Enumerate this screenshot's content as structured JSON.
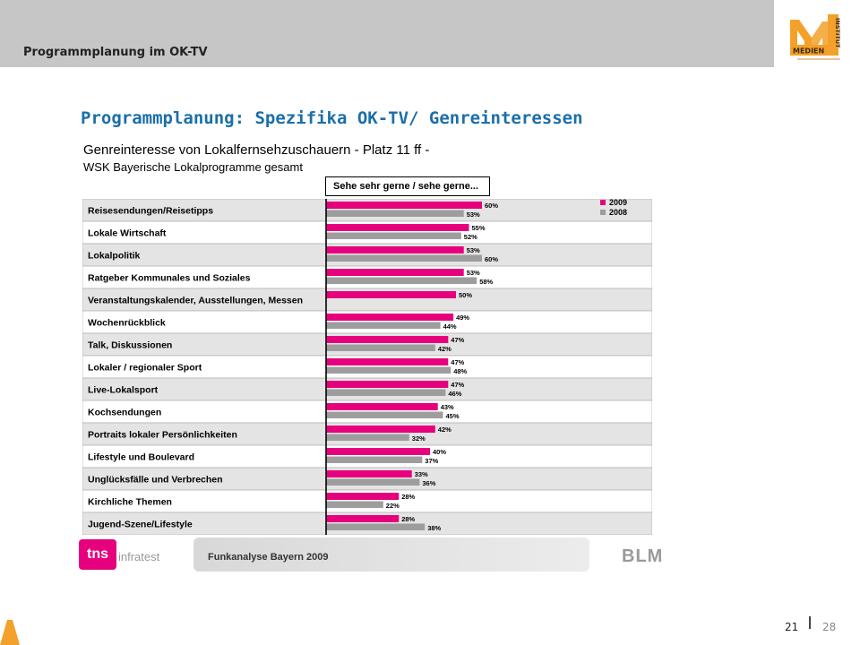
{
  "header": {
    "title": "Programmplanung im OK-TV",
    "logo_text": "MEDIEN",
    "logo_side": "INSTITUT"
  },
  "slide_title": "Programmplanung: Spezifika OK-TV/ Genreinteressen",
  "colors": {
    "series_2009": "#e6007e",
    "series_2008": "#9d9d9d",
    "row_alt": "#e4e4e4",
    "title": "#1b6fa8"
  },
  "chart_data": {
    "type": "bar",
    "orientation": "horizontal",
    "title": "Genreinteresse von Lokalfernsehzuschauern - Platz 11 ff -",
    "subtitle": "WSK Bayerische Lokalprogramme gesamt",
    "column_header": "Sehe sehr gerne / sehe gerne...",
    "legend_position": "top-right",
    "xlim": [
      0,
      100
    ],
    "categories": [
      "Reisesendungen/Reisetipps",
      "Lokale Wirtschaft",
      "Lokalpolitik",
      "Ratgeber Kommunales und Soziales",
      "Veranstaltungskalender, Ausstellungen, Messen",
      "Wochenrückblick",
      "Talk, Diskussionen",
      "Lokaler / regionaler Sport",
      "Live-Lokalsport",
      "Kochsendungen",
      "Portraits lokaler Persönlichkeiten",
      "Lifestyle und Boulevard",
      "Unglücksfälle und Verbrechen",
      "Kirchliche Themen",
      "Jugend-Szene/Lifestyle"
    ],
    "series": [
      {
        "name": "2009",
        "values": [
          60,
          55,
          53,
          53,
          50,
          49,
          47,
          47,
          47,
          43,
          42,
          40,
          33,
          28,
          28
        ]
      },
      {
        "name": "2008",
        "values": [
          53,
          52,
          60,
          58,
          null,
          44,
          42,
          48,
          46,
          45,
          32,
          37,
          36,
          22,
          38
        ]
      }
    ]
  },
  "footer": {
    "source": "Funkanalyse Bayern 2009",
    "tns_mark": "tns",
    "tns_word": "infratest",
    "blm": "BLM"
  },
  "page": {
    "current": "21",
    "total": "28"
  }
}
